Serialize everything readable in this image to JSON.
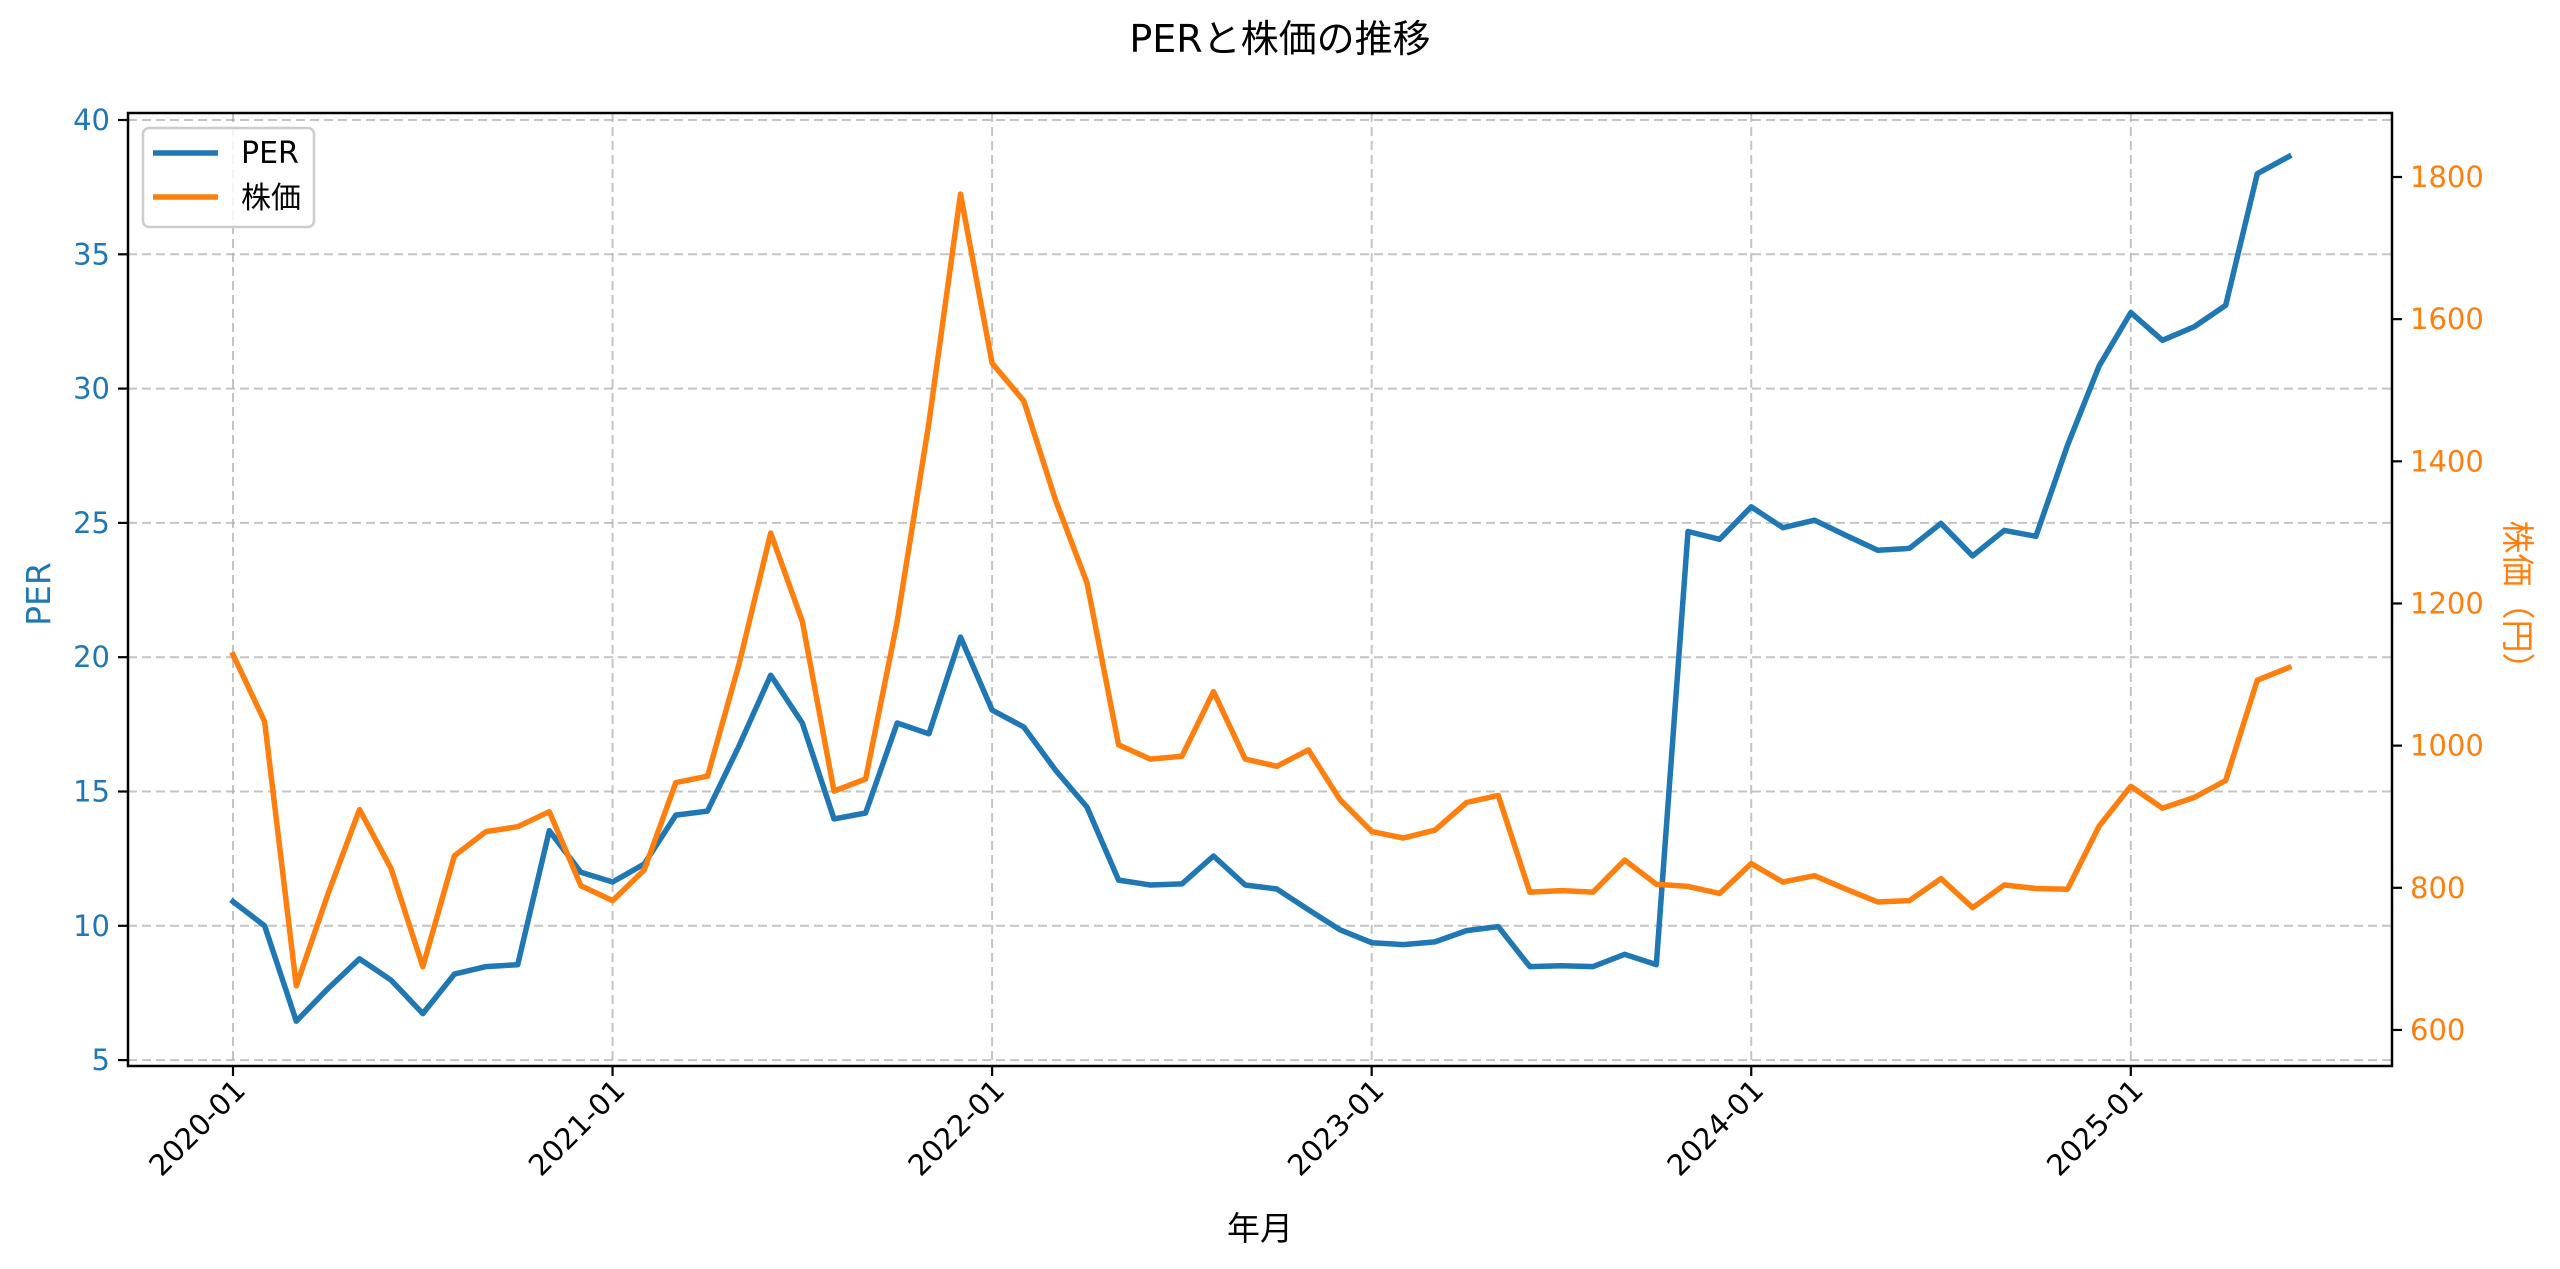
{
  "title": "PERと株価の推移",
  "colors": {
    "per": "#1f77b4",
    "price": "#ff7f0e"
  },
  "legend": {
    "items": [
      {
        "label": "PER",
        "color": "#1f77b4"
      },
      {
        "label": "株価",
        "color": "#ff7f0e"
      }
    ]
  },
  "axes": {
    "x": {
      "label": "年月",
      "ticks": [
        "2020-01",
        "2021-01",
        "2022-01",
        "2023-01",
        "2024-01",
        "2025-01"
      ]
    },
    "y_left": {
      "label": "PER",
      "ticks": [
        5,
        10,
        15,
        20,
        25,
        30,
        35,
        40
      ]
    },
    "y_right": {
      "label": "株価（円）",
      "ticks": [
        600,
        800,
        1000,
        1200,
        1400,
        1600,
        1800
      ]
    }
  },
  "chart_data": {
    "type": "line",
    "title": "PERと株価の推移",
    "xlabel": "年月",
    "ylabel": "PER",
    "ylabel_right": "株価（円）",
    "ylim": [
      4.8,
      40.5
    ],
    "ylim_right": [
      555,
      1880
    ],
    "grid": true,
    "legend_position": "upper left",
    "x": [
      "2020-01",
      "2020-02",
      "2020-03",
      "2020-04",
      "2020-05",
      "2020-06",
      "2020-07",
      "2020-08",
      "2020-09",
      "2020-10",
      "2020-11",
      "2020-12",
      "2021-01",
      "2021-02",
      "2021-03",
      "2021-04",
      "2021-05",
      "2021-06",
      "2021-07",
      "2021-08",
      "2021-09",
      "2021-10",
      "2021-11",
      "2021-12",
      "2022-01",
      "2022-02",
      "2022-03",
      "2022-04",
      "2022-05",
      "2022-06",
      "2022-07",
      "2022-08",
      "2022-09",
      "2022-10",
      "2022-11",
      "2022-12",
      "2023-01",
      "2023-02",
      "2023-03",
      "2023-04",
      "2023-05",
      "2023-06",
      "2023-07",
      "2023-08",
      "2023-09",
      "2023-10",
      "2023-11",
      "2023-12",
      "2024-01",
      "2024-02",
      "2024-03",
      "2024-04",
      "2024-05",
      "2024-06",
      "2024-07",
      "2024-08",
      "2024-09",
      "2024-10",
      "2024-11",
      "2024-12",
      "2025-01",
      "2025-02",
      "2025-03",
      "2025-04",
      "2025-05",
      "2025-06"
    ],
    "series": [
      {
        "name": "PER",
        "axis": "left",
        "color": "#1f77b4",
        "values": [
          10.9,
          10.0,
          6.45,
          7.66,
          8.77,
          7.98,
          6.73,
          8.2,
          8.48,
          8.55,
          13.54,
          11.99,
          11.63,
          12.3,
          14.12,
          14.27,
          16.7,
          19.33,
          17.55,
          13.98,
          14.2,
          17.55,
          17.15,
          20.75,
          18.03,
          17.4,
          15.8,
          14.42,
          11.7,
          11.52,
          11.56,
          12.6,
          11.52,
          11.37,
          10.6,
          9.85,
          9.37,
          9.3,
          9.4,
          9.82,
          9.97,
          8.48,
          8.51,
          8.48,
          8.94,
          8.55,
          24.68,
          24.39,
          25.6,
          24.82,
          25.1,
          24.53,
          23.98,
          24.05,
          24.98,
          23.77,
          24.72,
          24.5,
          27.89,
          30.85,
          32.83,
          31.8,
          32.3,
          33.1,
          38.0,
          38.64
        ]
      },
      {
        "name": "株価",
        "axis": "right",
        "color": "#ff7f0e",
        "values": [
          1128,
          1034,
          662,
          791,
          910,
          827,
          689,
          845,
          879,
          886,
          907,
          803,
          782,
          825,
          948,
          957,
          1115,
          1299,
          1175,
          936,
          953,
          1175,
          1454,
          1776,
          1538,
          1485,
          1346,
          1229,
          1001,
          981,
          985,
          1076,
          981,
          971,
          994,
          924,
          879,
          870,
          881,
          920,
          930,
          794,
          796,
          794,
          839,
          805,
          802,
          792,
          834,
          808,
          817,
          798,
          780,
          782,
          813,
          772,
          804,
          799,
          798,
          887,
          943,
          912,
          927,
          951,
          1092,
          1110
        ]
      }
    ]
  }
}
